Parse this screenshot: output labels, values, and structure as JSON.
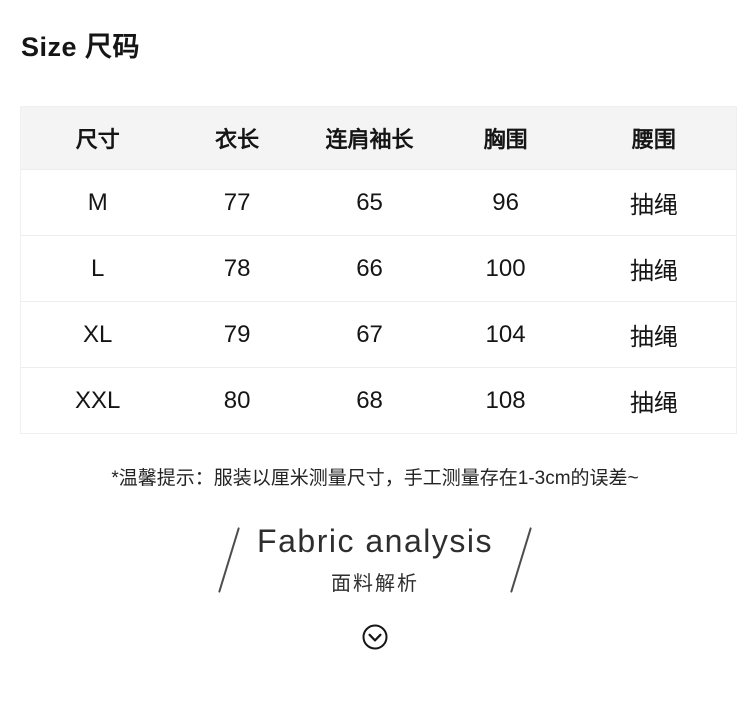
{
  "page": {
    "background": "#ffffff",
    "text_color": "#151515"
  },
  "size_section": {
    "title": "Size 尺码",
    "table": {
      "header_bg": "#f4f4f4",
      "divider_color": "#ededed",
      "headers": [
        "尺寸",
        "衣长",
        "连肩袖长",
        "胸围",
        "腰围"
      ],
      "rows": [
        [
          "M",
          "77",
          "65",
          "96",
          "抽绳"
        ],
        [
          "L",
          "78",
          "66",
          "100",
          "抽绳"
        ],
        [
          "XL",
          "79",
          "67",
          "104",
          "抽绳"
        ],
        [
          "XXL",
          "80",
          "68",
          "108",
          "抽绳"
        ]
      ]
    },
    "tip": "*温馨提示：服装以厘米测量尺寸，手工测量存在1-3cm的误差~"
  },
  "fabric_section": {
    "title_en": "Fabric analysis",
    "title_zh": "面料解析",
    "expand_icon": "chevron-down-circle",
    "icon_color": "#161616"
  }
}
